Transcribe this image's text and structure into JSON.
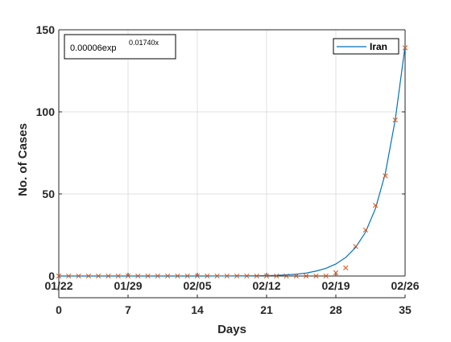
{
  "chart_data": {
    "type": "scatter",
    "xlabel": "Days",
    "ylabel": "No. of Cases",
    "xlim": [
      0,
      35
    ],
    "ylim": [
      0,
      150
    ],
    "grid": true,
    "top_axis_ticks": [
      {
        "x": 0,
        "label": "01/22"
      },
      {
        "x": 7,
        "label": "01/29"
      },
      {
        "x": 14,
        "label": "02/05"
      },
      {
        "x": 21,
        "label": "02/12"
      },
      {
        "x": 28,
        "label": "02/19"
      },
      {
        "x": 35,
        "label": "02/26"
      }
    ],
    "bottom_axis_ticks": [
      {
        "x": 0,
        "label": "0"
      },
      {
        "x": 7,
        "label": "7"
      },
      {
        "x": 14,
        "label": "14"
      },
      {
        "x": 21,
        "label": "21"
      },
      {
        "x": 28,
        "label": "28"
      },
      {
        "x": 35,
        "label": "35"
      }
    ],
    "y_ticks": [
      {
        "y": 0,
        "label": "0"
      },
      {
        "y": 50,
        "label": "50"
      },
      {
        "y": 100,
        "label": "100"
      },
      {
        "y": 150,
        "label": "150"
      }
    ],
    "legend": {
      "position": "top-right",
      "label": "Iran"
    },
    "annotation": {
      "position": "top-left",
      "base": "0.00006exp",
      "exponent": "0.01740x"
    },
    "series": [
      {
        "name": "Iran",
        "type": "line",
        "color": "#0072BD",
        "x": [
          0,
          1,
          2,
          3,
          4,
          5,
          6,
          7,
          8,
          9,
          10,
          11,
          12,
          13,
          14,
          15,
          16,
          17,
          18,
          19,
          20,
          21,
          22,
          23,
          24,
          25,
          26,
          27,
          28,
          29,
          30,
          31,
          32,
          33,
          34,
          35
        ],
        "y": [
          0,
          0,
          0,
          0,
          0,
          0,
          0,
          0,
          0,
          0,
          0,
          0,
          0,
          0,
          0,
          0.01,
          0.02,
          0.03,
          0.05,
          0.08,
          0.14,
          0.24,
          0.4,
          0.7,
          1.1,
          1.8,
          3.0,
          4.7,
          7.3,
          11.3,
          17.4,
          26.7,
          41.0,
          62.5,
          95.0,
          140.0
        ]
      },
      {
        "name": "",
        "type": "scatter",
        "marker": "x",
        "color": "#D95319",
        "x": [
          0,
          1,
          2,
          3,
          4,
          5,
          6,
          7,
          8,
          9,
          10,
          11,
          12,
          13,
          14,
          15,
          16,
          17,
          18,
          19,
          20,
          21,
          22,
          23,
          24,
          25,
          26,
          27,
          28,
          29,
          30,
          31,
          32,
          33,
          34,
          35
        ],
        "y": [
          0,
          0,
          0,
          0,
          0,
          0,
          0,
          0,
          0,
          0,
          0,
          0,
          0,
          0,
          0,
          0,
          0,
          0,
          0,
          0,
          0,
          0,
          0,
          0,
          0,
          0,
          0,
          0,
          2,
          5,
          18,
          28,
          43,
          61,
          95,
          139
        ]
      }
    ]
  }
}
